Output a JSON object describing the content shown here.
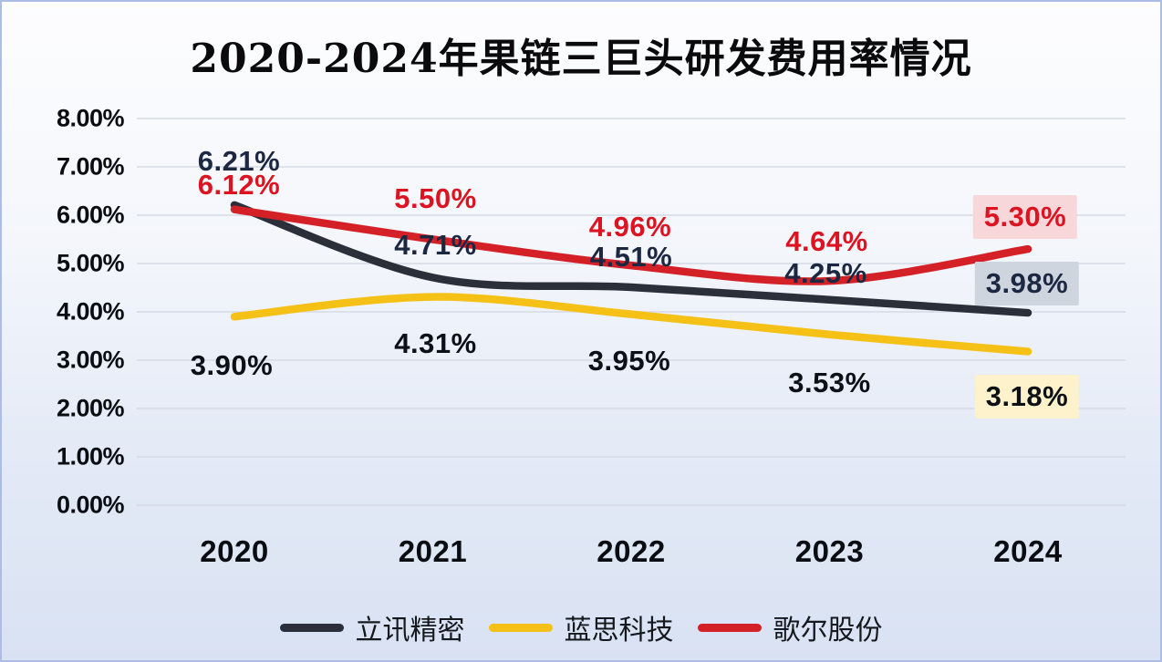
{
  "title": "2020-2024年果链三巨头研发费用率情况",
  "chart_data": {
    "type": "line",
    "categories": [
      "2020",
      "2021",
      "2022",
      "2023",
      "2024"
    ],
    "series": [
      {
        "name": "立讯精密",
        "line_color": "#2a2f3a",
        "label_color": "#1c2741",
        "values": [
          6.21,
          4.71,
          4.51,
          4.25,
          3.98
        ],
        "labels": [
          "6.21%",
          "4.71%",
          "4.51%",
          "4.25%",
          "3.98%"
        ],
        "highlight_box_color": "#ced5de"
      },
      {
        "name": "蓝思科技",
        "line_color": "#f5c117",
        "label_color": "#0d1117",
        "values": [
          3.9,
          4.31,
          3.95,
          3.53,
          3.18
        ],
        "labels": [
          "3.90%",
          "4.31%",
          "3.95%",
          "3.53%",
          "3.18%"
        ],
        "highlight_box_color": "#fdf2cc"
      },
      {
        "name": "歌尔股份",
        "line_color": "#d42128",
        "label_color": "#dc1320",
        "values": [
          6.12,
          5.5,
          4.96,
          4.64,
          5.3
        ],
        "labels": [
          "6.12%",
          "5.50%",
          "4.96%",
          "4.64%",
          "5.30%"
        ],
        "highlight_box_color": "#f7d7da"
      }
    ],
    "y_ticks": [
      "8.00%",
      "7.00%",
      "6.00%",
      "5.00%",
      "4.00%",
      "3.00%",
      "2.00%",
      "1.00%",
      "0.00%"
    ],
    "ylim": [
      0,
      8
    ],
    "grid": "horizontal",
    "grid_color": "#d5dae5",
    "legend_position": "bottom",
    "background_top": "#fdfdfe",
    "background_bottom": "#d9e2f3"
  }
}
